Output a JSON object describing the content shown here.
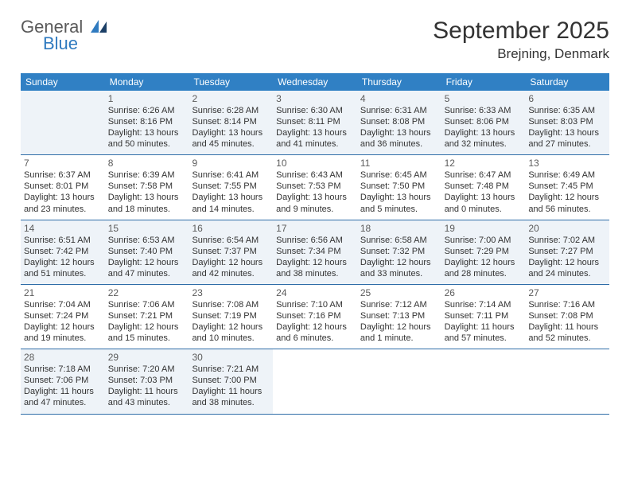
{
  "logo": {
    "text1": "General",
    "text2": "Blue",
    "color_general": "#5a5a5a",
    "color_blue": "#2f7abf"
  },
  "title": {
    "month": "September 2025",
    "location": "Brejning, Denmark",
    "fontsize_month": 30,
    "fontsize_location": 17
  },
  "colors": {
    "header_bg": "#3080c4",
    "header_text": "#ffffff",
    "cell_bg": "#ffffff",
    "cell_bg_shaded": "#eef3f8",
    "row_border": "#2f6da8",
    "day_num": "#5b5b5b",
    "body_text": "#333333"
  },
  "weekdays": [
    "Sunday",
    "Monday",
    "Tuesday",
    "Wednesday",
    "Thursday",
    "Friday",
    "Saturday"
  ],
  "weeks": [
    [
      {
        "shaded": true
      },
      {
        "shaded": true,
        "num": "1",
        "sunrise": "Sunrise: 6:26 AM",
        "sunset": "Sunset: 8:16 PM",
        "day1": "Daylight: 13 hours",
        "day2": "and 50 minutes."
      },
      {
        "shaded": true,
        "num": "2",
        "sunrise": "Sunrise: 6:28 AM",
        "sunset": "Sunset: 8:14 PM",
        "day1": "Daylight: 13 hours",
        "day2": "and 45 minutes."
      },
      {
        "shaded": true,
        "num": "3",
        "sunrise": "Sunrise: 6:30 AM",
        "sunset": "Sunset: 8:11 PM",
        "day1": "Daylight: 13 hours",
        "day2": "and 41 minutes."
      },
      {
        "shaded": true,
        "num": "4",
        "sunrise": "Sunrise: 6:31 AM",
        "sunset": "Sunset: 8:08 PM",
        "day1": "Daylight: 13 hours",
        "day2": "and 36 minutes."
      },
      {
        "shaded": true,
        "num": "5",
        "sunrise": "Sunrise: 6:33 AM",
        "sunset": "Sunset: 8:06 PM",
        "day1": "Daylight: 13 hours",
        "day2": "and 32 minutes."
      },
      {
        "shaded": true,
        "num": "6",
        "sunrise": "Sunrise: 6:35 AM",
        "sunset": "Sunset: 8:03 PM",
        "day1": "Daylight: 13 hours",
        "day2": "and 27 minutes."
      }
    ],
    [
      {
        "num": "7",
        "sunrise": "Sunrise: 6:37 AM",
        "sunset": "Sunset: 8:01 PM",
        "day1": "Daylight: 13 hours",
        "day2": "and 23 minutes."
      },
      {
        "num": "8",
        "sunrise": "Sunrise: 6:39 AM",
        "sunset": "Sunset: 7:58 PM",
        "day1": "Daylight: 13 hours",
        "day2": "and 18 minutes."
      },
      {
        "num": "9",
        "sunrise": "Sunrise: 6:41 AM",
        "sunset": "Sunset: 7:55 PM",
        "day1": "Daylight: 13 hours",
        "day2": "and 14 minutes."
      },
      {
        "num": "10",
        "sunrise": "Sunrise: 6:43 AM",
        "sunset": "Sunset: 7:53 PM",
        "day1": "Daylight: 13 hours",
        "day2": "and 9 minutes."
      },
      {
        "num": "11",
        "sunrise": "Sunrise: 6:45 AM",
        "sunset": "Sunset: 7:50 PM",
        "day1": "Daylight: 13 hours",
        "day2": "and 5 minutes."
      },
      {
        "num": "12",
        "sunrise": "Sunrise: 6:47 AM",
        "sunset": "Sunset: 7:48 PM",
        "day1": "Daylight: 13 hours",
        "day2": "and 0 minutes."
      },
      {
        "num": "13",
        "sunrise": "Sunrise: 6:49 AM",
        "sunset": "Sunset: 7:45 PM",
        "day1": "Daylight: 12 hours",
        "day2": "and 56 minutes."
      }
    ],
    [
      {
        "shaded": true,
        "num": "14",
        "sunrise": "Sunrise: 6:51 AM",
        "sunset": "Sunset: 7:42 PM",
        "day1": "Daylight: 12 hours",
        "day2": "and 51 minutes."
      },
      {
        "shaded": true,
        "num": "15",
        "sunrise": "Sunrise: 6:53 AM",
        "sunset": "Sunset: 7:40 PM",
        "day1": "Daylight: 12 hours",
        "day2": "and 47 minutes."
      },
      {
        "shaded": true,
        "num": "16",
        "sunrise": "Sunrise: 6:54 AM",
        "sunset": "Sunset: 7:37 PM",
        "day1": "Daylight: 12 hours",
        "day2": "and 42 minutes."
      },
      {
        "shaded": true,
        "num": "17",
        "sunrise": "Sunrise: 6:56 AM",
        "sunset": "Sunset: 7:34 PM",
        "day1": "Daylight: 12 hours",
        "day2": "and 38 minutes."
      },
      {
        "shaded": true,
        "num": "18",
        "sunrise": "Sunrise: 6:58 AM",
        "sunset": "Sunset: 7:32 PM",
        "day1": "Daylight: 12 hours",
        "day2": "and 33 minutes."
      },
      {
        "shaded": true,
        "num": "19",
        "sunrise": "Sunrise: 7:00 AM",
        "sunset": "Sunset: 7:29 PM",
        "day1": "Daylight: 12 hours",
        "day2": "and 28 minutes."
      },
      {
        "shaded": true,
        "num": "20",
        "sunrise": "Sunrise: 7:02 AM",
        "sunset": "Sunset: 7:27 PM",
        "day1": "Daylight: 12 hours",
        "day2": "and 24 minutes."
      }
    ],
    [
      {
        "num": "21",
        "sunrise": "Sunrise: 7:04 AM",
        "sunset": "Sunset: 7:24 PM",
        "day1": "Daylight: 12 hours",
        "day2": "and 19 minutes."
      },
      {
        "num": "22",
        "sunrise": "Sunrise: 7:06 AM",
        "sunset": "Sunset: 7:21 PM",
        "day1": "Daylight: 12 hours",
        "day2": "and 15 minutes."
      },
      {
        "num": "23",
        "sunrise": "Sunrise: 7:08 AM",
        "sunset": "Sunset: 7:19 PM",
        "day1": "Daylight: 12 hours",
        "day2": "and 10 minutes."
      },
      {
        "num": "24",
        "sunrise": "Sunrise: 7:10 AM",
        "sunset": "Sunset: 7:16 PM",
        "day1": "Daylight: 12 hours",
        "day2": "and 6 minutes."
      },
      {
        "num": "25",
        "sunrise": "Sunrise: 7:12 AM",
        "sunset": "Sunset: 7:13 PM",
        "day1": "Daylight: 12 hours",
        "day2": "and 1 minute."
      },
      {
        "num": "26",
        "sunrise": "Sunrise: 7:14 AM",
        "sunset": "Sunset: 7:11 PM",
        "day1": "Daylight: 11 hours",
        "day2": "and 57 minutes."
      },
      {
        "num": "27",
        "sunrise": "Sunrise: 7:16 AM",
        "sunset": "Sunset: 7:08 PM",
        "day1": "Daylight: 11 hours",
        "day2": "and 52 minutes."
      }
    ],
    [
      {
        "shaded": true,
        "num": "28",
        "sunrise": "Sunrise: 7:18 AM",
        "sunset": "Sunset: 7:06 PM",
        "day1": "Daylight: 11 hours",
        "day2": "and 47 minutes."
      },
      {
        "shaded": true,
        "num": "29",
        "sunrise": "Sunrise: 7:20 AM",
        "sunset": "Sunset: 7:03 PM",
        "day1": "Daylight: 11 hours",
        "day2": "and 43 minutes."
      },
      {
        "shaded": true,
        "num": "30",
        "sunrise": "Sunrise: 7:21 AM",
        "sunset": "Sunset: 7:00 PM",
        "day1": "Daylight: 11 hours",
        "day2": "and 38 minutes."
      },
      {},
      {},
      {},
      {}
    ]
  ]
}
